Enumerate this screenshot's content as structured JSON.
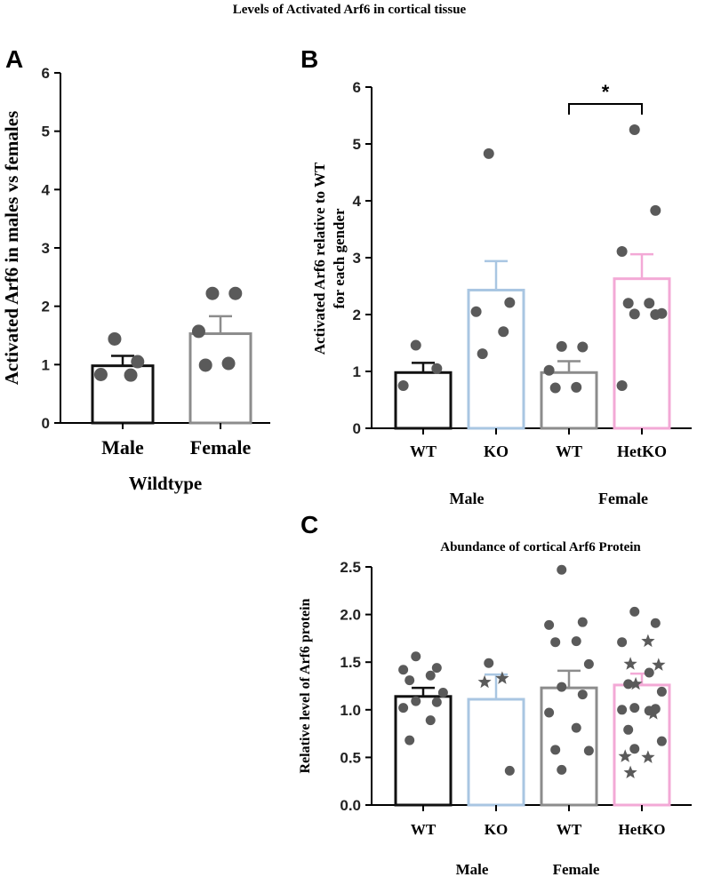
{
  "figure": {
    "title": "Levels of Activated Arf6 in cortical tissue"
  },
  "chart_data": [
    {
      "panel": "A",
      "type": "bar",
      "title": "",
      "ylabel": "Activated Arf6 in males vs females",
      "xlabel": "Wildtype",
      "ylim": [
        0,
        6
      ],
      "yticks": [
        "0",
        "1",
        "2",
        "3",
        "4",
        "5",
        "6"
      ],
      "categories": [
        "Male",
        "Female"
      ],
      "values": [
        0.98,
        1.53
      ],
      "errors": [
        0.17,
        0.3
      ],
      "colors": [
        "#111111",
        "#8c8c8c"
      ],
      "points": [
        [
          1.44,
          1.05,
          0.83,
          0.82
        ],
        [
          2.22,
          2.22,
          1.57,
          1.02,
          0.99
        ]
      ],
      "groups": []
    },
    {
      "panel": "B",
      "type": "bar",
      "title": "",
      "ylabel": "Activated Arf6 relative to WT for each gender",
      "ylim": [
        0,
        6
      ],
      "yticks": [
        "0",
        "1",
        "2",
        "3",
        "4",
        "5",
        "6"
      ],
      "categories": [
        "WT",
        "KO",
        "WT",
        "HetKO"
      ],
      "values": [
        0.98,
        2.43,
        0.98,
        2.63
      ],
      "errors": [
        0.17,
        0.51,
        0.2,
        0.43
      ],
      "colors": [
        "#111111",
        "#a9c6e2",
        "#8c8c8c",
        "#f3a9d6"
      ],
      "points": [
        [
          1.46,
          1.05,
          0.75
        ],
        [
          4.83,
          2.21,
          2.05,
          1.7,
          1.31
        ],
        [
          1.44,
          1.43,
          1.02,
          0.72,
          0.71
        ],
        [
          5.25,
          3.83,
          3.11,
          2.2,
          2.2,
          2.02,
          2.01,
          2.0,
          0.75
        ]
      ],
      "groups": [
        "Male",
        "Female"
      ],
      "significance": {
        "from": "WT",
        "to": "HetKO",
        "label": "*"
      }
    },
    {
      "panel": "C",
      "type": "bar",
      "title": "Abundance of cortical Arf6 Protein",
      "ylabel": "Relative level of Arf6 protein",
      "ylim": [
        0,
        2.5
      ],
      "yticks": [
        "0.0",
        "0.5",
        "1.0",
        "1.5",
        "2.0",
        "2.5"
      ],
      "categories": [
        "WT",
        "KO",
        "WT",
        "HetKO"
      ],
      "values": [
        1.14,
        1.11,
        1.23,
        1.26
      ],
      "errors": [
        0.09,
        0.26,
        0.18,
        0.12
      ],
      "colors": [
        "#111111",
        "#a9c6e2",
        "#8c8c8c",
        "#f3a9d6"
      ],
      "points": [
        [
          1.56,
          1.44,
          1.42,
          1.36,
          1.31,
          1.18,
          1.09,
          1.08,
          1.02,
          0.89,
          0.68
        ],
        [
          1.49,
          0.36
        ],
        [
          2.47,
          1.92,
          1.89,
          1.72,
          1.71,
          1.48,
          1.24,
          1.16,
          0.97,
          0.81,
          0.58,
          0.57,
          0.37
        ],
        [
          2.03,
          1.91,
          1.71,
          1.39,
          1.27,
          1.19,
          1.02,
          1.01,
          1.0,
          0.99,
          0.79,
          0.67,
          0.59
        ]
      ],
      "stars": [
        [],
        [
          1.33,
          1.29
        ],
        [],
        [
          1.72,
          1.48,
          1.47,
          1.27,
          0.96,
          0.51,
          0.5,
          0.34
        ]
      ],
      "groups": [
        "Male",
        "Female"
      ]
    }
  ],
  "panel_labels": [
    "A",
    "B",
    "C"
  ]
}
